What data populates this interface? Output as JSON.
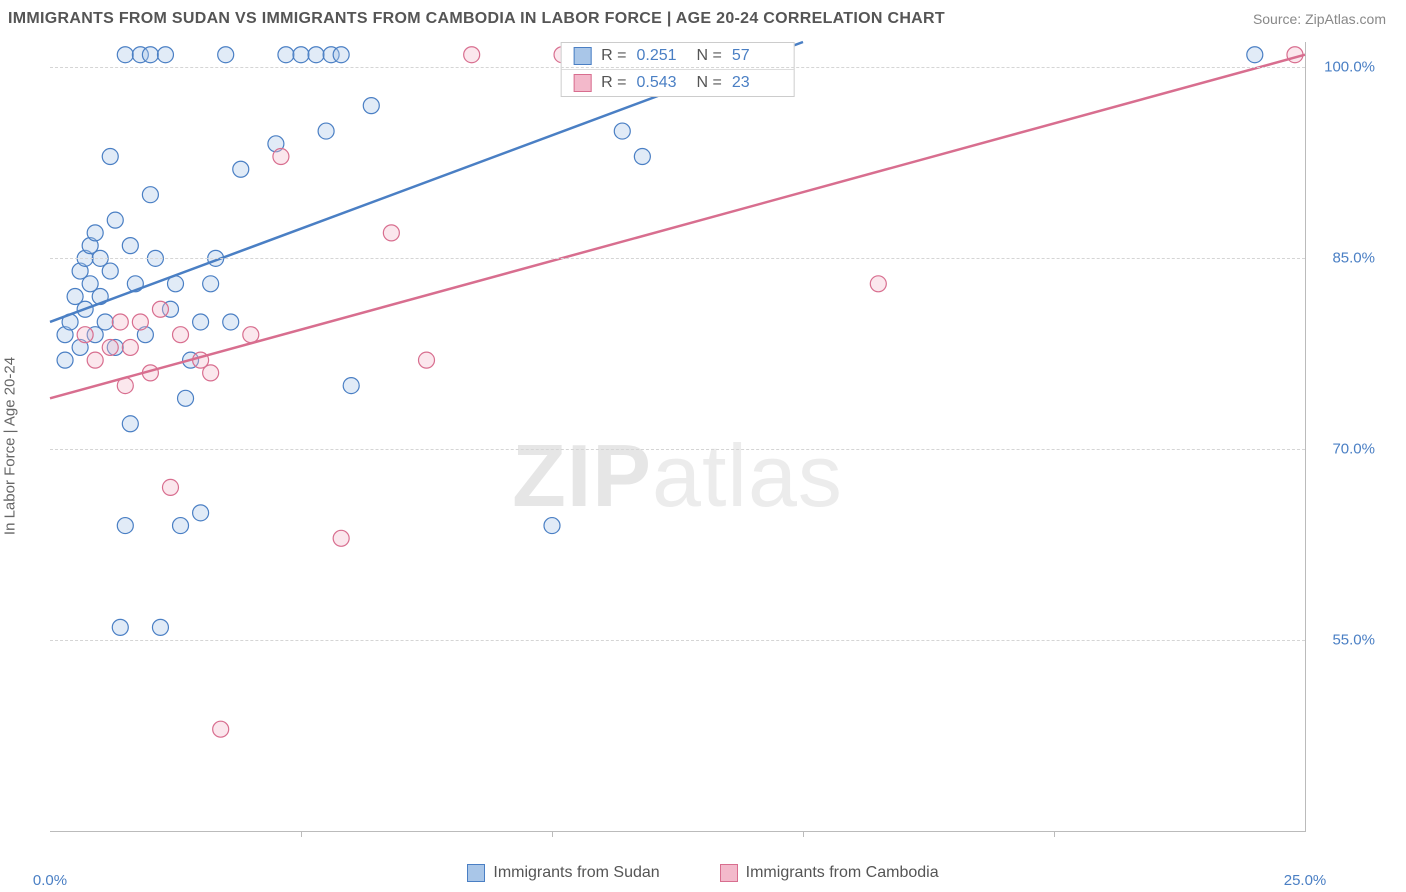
{
  "title": "IMMIGRANTS FROM SUDAN VS IMMIGRANTS FROM CAMBODIA IN LABOR FORCE | AGE 20-24 CORRELATION CHART",
  "source": "Source: ZipAtlas.com",
  "yaxis_title": "In Labor Force | Age 20-24",
  "watermark_bold": "ZIP",
  "watermark_thin": "atlas",
  "chart": {
    "type": "scatter",
    "xlim": [
      0,
      25
    ],
    "ylim": [
      40,
      102
    ],
    "x_ticks": [
      0,
      25
    ],
    "x_tick_labels": [
      "0.0%",
      "25.0%"
    ],
    "x_minor_ticks": [
      5,
      10,
      15,
      20
    ],
    "y_ticks": [
      55,
      70,
      85,
      100
    ],
    "y_tick_labels": [
      "55.0%",
      "70.0%",
      "85.0%",
      "100.0%"
    ],
    "grid_color": "#d5d5d5",
    "background_color": "#ffffff",
    "marker_radius": 8,
    "series": [
      {
        "name": "Immigrants from Sudan",
        "color_stroke": "#4a7fc4",
        "color_fill": "#a9c6e8",
        "R": "0.251",
        "N": "57",
        "trend": {
          "x1": 0,
          "y1": 80,
          "x2": 15,
          "y2": 102
        },
        "points": [
          [
            0.3,
            79
          ],
          [
            0.4,
            80
          ],
          [
            0.5,
            82
          ],
          [
            0.6,
            78
          ],
          [
            0.6,
            84
          ],
          [
            0.7,
            81
          ],
          [
            0.7,
            85
          ],
          [
            0.8,
            83
          ],
          [
            0.8,
            86
          ],
          [
            0.9,
            79
          ],
          [
            0.9,
            87
          ],
          [
            1.0,
            82
          ],
          [
            1.0,
            85
          ],
          [
            1.1,
            80
          ],
          [
            1.2,
            93
          ],
          [
            1.2,
            84
          ],
          [
            1.3,
            78
          ],
          [
            1.3,
            88
          ],
          [
            1.4,
            56
          ],
          [
            1.5,
            64
          ],
          [
            1.5,
            101
          ],
          [
            1.6,
            72
          ],
          [
            1.6,
            86
          ],
          [
            1.7,
            83
          ],
          [
            1.8,
            101
          ],
          [
            1.9,
            79
          ],
          [
            2.0,
            90
          ],
          [
            2.0,
            101
          ],
          [
            2.1,
            85
          ],
          [
            2.2,
            56
          ],
          [
            2.3,
            101
          ],
          [
            2.4,
            81
          ],
          [
            2.5,
            83
          ],
          [
            2.6,
            64
          ],
          [
            2.7,
            74
          ],
          [
            2.8,
            77
          ],
          [
            3.0,
            80
          ],
          [
            3.0,
            65
          ],
          [
            3.2,
            83
          ],
          [
            3.3,
            85
          ],
          [
            3.5,
            101
          ],
          [
            3.6,
            80
          ],
          [
            3.8,
            92
          ],
          [
            4.5,
            94
          ],
          [
            4.7,
            101
          ],
          [
            5.0,
            101
          ],
          [
            5.3,
            101
          ],
          [
            5.5,
            95
          ],
          [
            5.6,
            101
          ],
          [
            5.8,
            101
          ],
          [
            6.0,
            75
          ],
          [
            6.4,
            97
          ],
          [
            10.0,
            64
          ],
          [
            11.4,
            95
          ],
          [
            11.8,
            93
          ],
          [
            24.0,
            101
          ],
          [
            0.3,
            77
          ]
        ]
      },
      {
        "name": "Immigrants from Cambodia",
        "color_stroke": "#d86e8f",
        "color_fill": "#f3b9cb",
        "R": "0.543",
        "N": "23",
        "trend": {
          "x1": 0,
          "y1": 74,
          "x2": 25,
          "y2": 101
        },
        "points": [
          [
            0.7,
            79
          ],
          [
            0.9,
            77
          ],
          [
            1.2,
            78
          ],
          [
            1.4,
            80
          ],
          [
            1.5,
            75
          ],
          [
            1.6,
            78
          ],
          [
            1.8,
            80
          ],
          [
            2.0,
            76
          ],
          [
            2.2,
            81
          ],
          [
            2.4,
            67
          ],
          [
            2.6,
            79
          ],
          [
            3.0,
            77
          ],
          [
            3.2,
            76
          ],
          [
            3.4,
            48
          ],
          [
            4.0,
            79
          ],
          [
            4.6,
            93
          ],
          [
            5.8,
            63
          ],
          [
            6.8,
            87
          ],
          [
            7.5,
            77
          ],
          [
            8.4,
            101
          ],
          [
            10.2,
            101
          ],
          [
            16.5,
            83
          ],
          [
            24.8,
            101
          ]
        ]
      }
    ]
  },
  "legend_top": {
    "R_label": "R  =",
    "N_label": "N  ="
  }
}
